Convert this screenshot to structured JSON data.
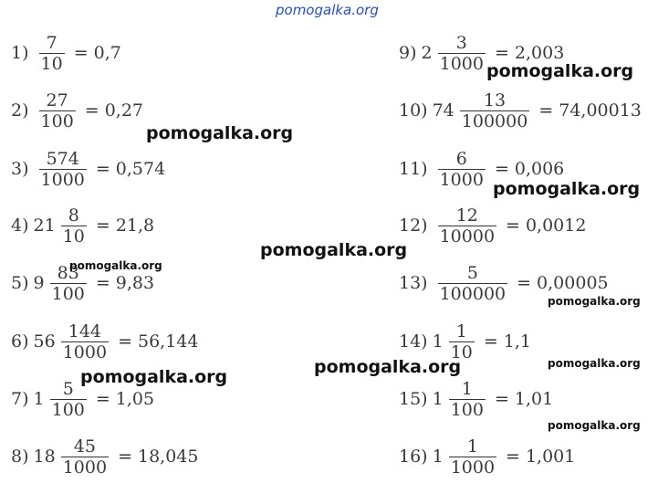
{
  "watermark_text": "pomogalka.org",
  "left_column": [
    {
      "num": "1)",
      "whole": "",
      "numerator": "7",
      "denominator": "10",
      "result": "0,7"
    },
    {
      "num": "2)",
      "whole": "",
      "numerator": "27",
      "denominator": "100",
      "result": "0,27"
    },
    {
      "num": "3)",
      "whole": "",
      "numerator": "574",
      "denominator": "1000",
      "result": "0,574"
    },
    {
      "num": "4)",
      "whole": "21",
      "numerator": "8",
      "denominator": "10",
      "result": "21,8"
    },
    {
      "num": "5)",
      "whole": "9",
      "numerator": "83",
      "denominator": "100",
      "result": "9,83"
    },
    {
      "num": "6)",
      "whole": "56",
      "numerator": "144",
      "denominator": "1000",
      "result": "56,144"
    },
    {
      "num": "7)",
      "whole": "1",
      "numerator": "5",
      "denominator": "100",
      "result": "1,05"
    },
    {
      "num": "8)",
      "whole": "18",
      "numerator": "45",
      "denominator": "1000",
      "result": "18,045"
    }
  ],
  "right_column": [
    {
      "num": "9)",
      "whole": "2",
      "numerator": "3",
      "denominator": "1000",
      "result": "2,003"
    },
    {
      "num": "10)",
      "whole": "74",
      "numerator": "13",
      "denominator": "100000",
      "result": "74,00013"
    },
    {
      "num": "11)",
      "whole": "",
      "numerator": "6",
      "denominator": "1000",
      "result": "0,006"
    },
    {
      "num": "12)",
      "whole": "",
      "numerator": "12",
      "denominator": "10000",
      "result": "0,0012"
    },
    {
      "num": "13)",
      "whole": "",
      "numerator": "5",
      "denominator": "100000",
      "result": "0,00005"
    },
    {
      "num": "14)",
      "whole": "1",
      "numerator": "1",
      "denominator": "10",
      "result": "1,1"
    },
    {
      "num": "15)",
      "whole": "1",
      "numerator": "1",
      "denominator": "100",
      "result": "1,01"
    },
    {
      "num": "16)",
      "whole": "1",
      "numerator": "1",
      "denominator": "1000",
      "result": "1,001"
    }
  ]
}
